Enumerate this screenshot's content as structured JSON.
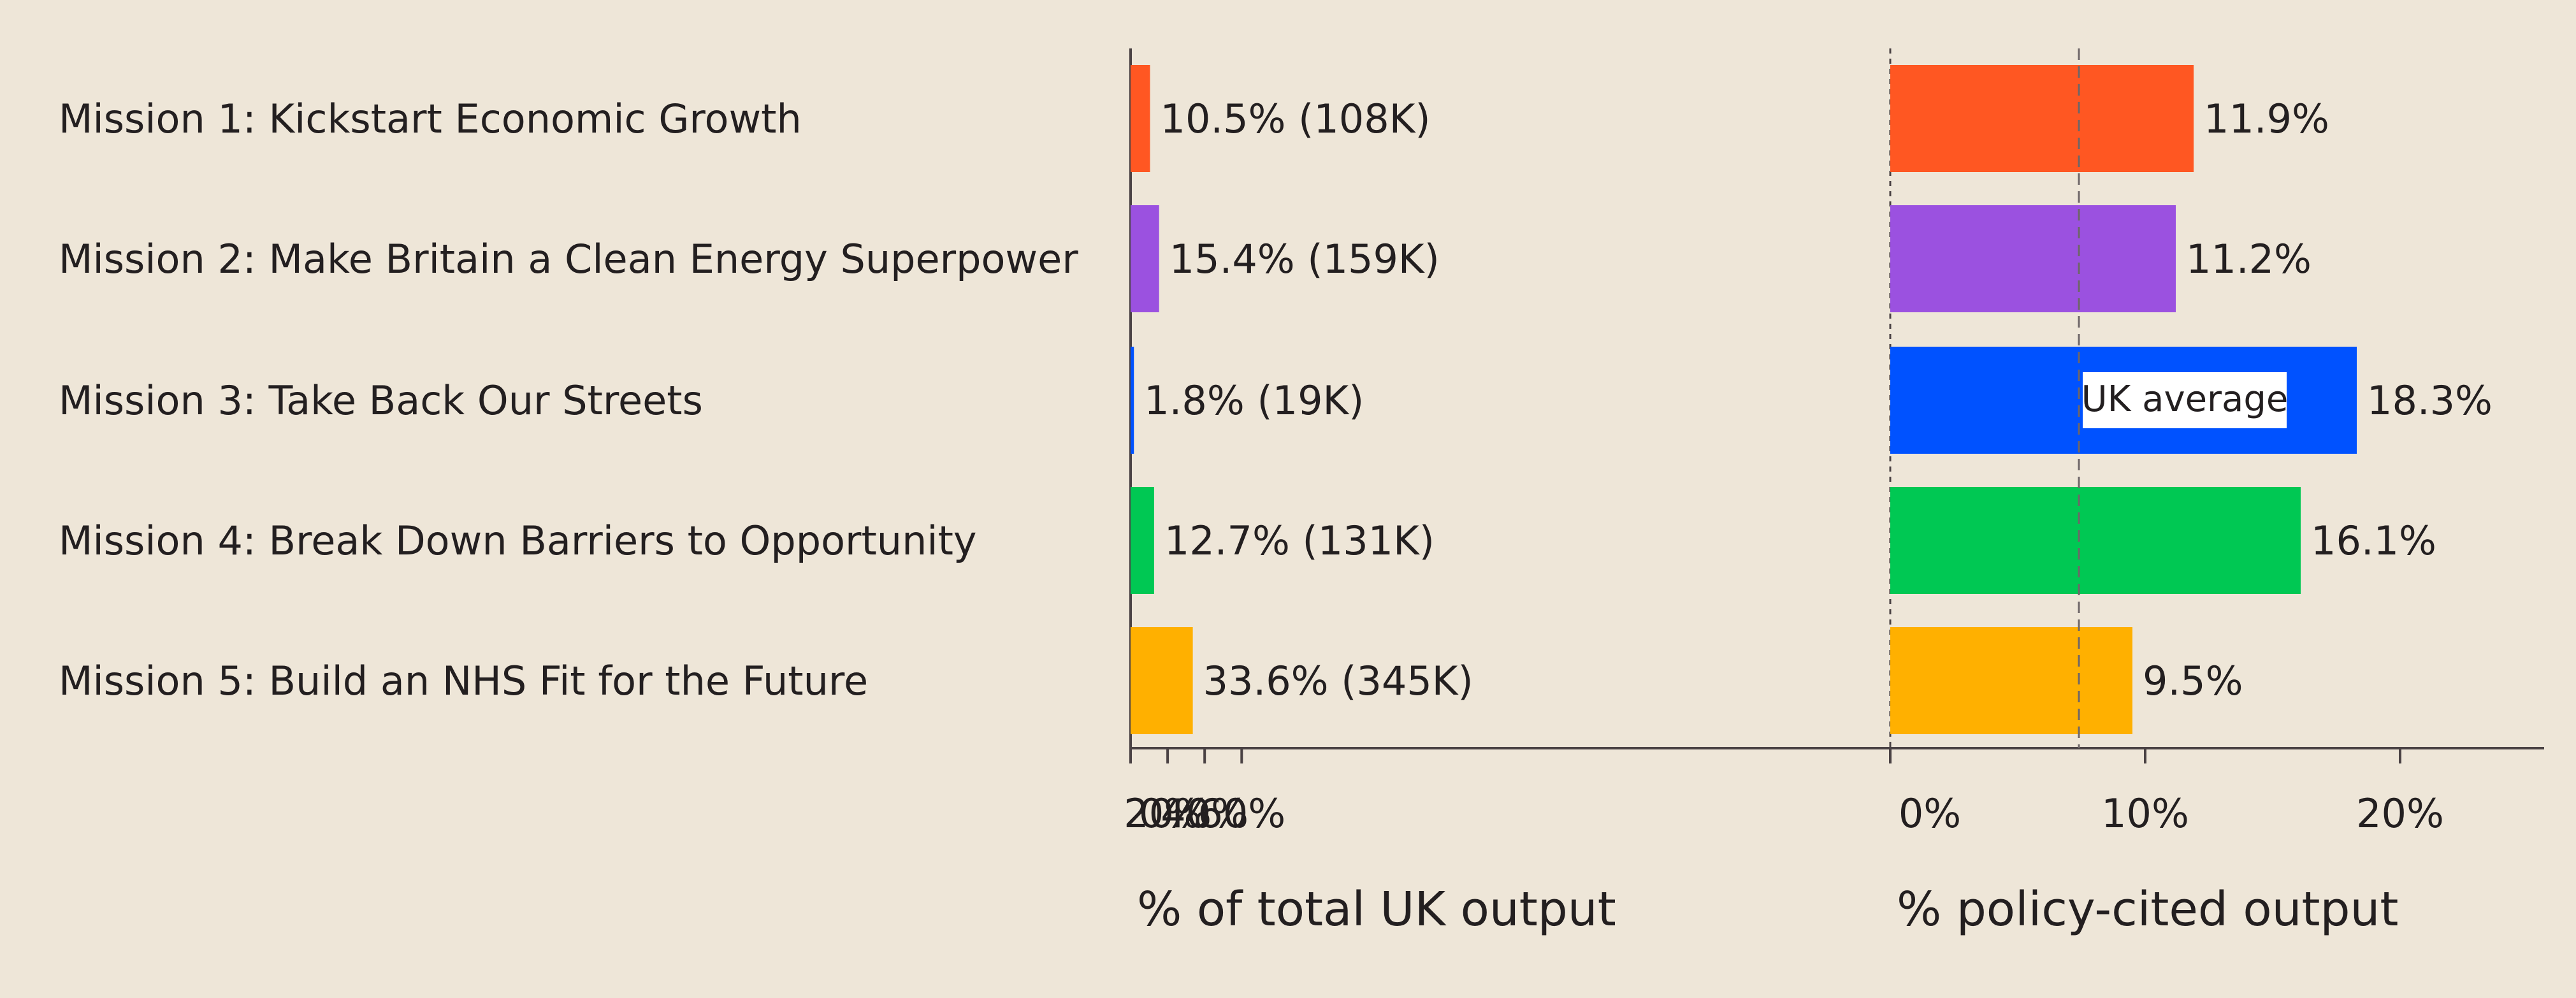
{
  "chart_data": [
    {
      "type": "bar",
      "orientation": "horizontal",
      "categories": [
        "Mission 1: Kickstart Economic Growth",
        "Mission 2: Make Britain a Clean Energy Superpower",
        "Mission 3: Take Back Our Streets",
        "Mission 4: Break Down Barriers to Opportunity",
        "Mission 5: Build an NHS Fit for the Future"
      ],
      "values": [
        10.5,
        15.4,
        1.8,
        12.7,
        33.6
      ],
      "data_labels": [
        "10.5% (108K)",
        "15.4% (159K)",
        "1.8% (19K)",
        "12.7% (131K)",
        "33.6% (345K)"
      ],
      "xlabel": "% of total UK output",
      "xlim": [
        0,
        75
      ],
      "xticks": [
        0,
        20,
        40,
        60
      ],
      "xtick_labels": [
        "0%",
        "20%",
        "40%",
        "60%"
      ],
      "colors": [
        "#FF5722",
        "#9B51E0",
        "#0052FF",
        "#00C853",
        "#FFB000"
      ],
      "grid": false
    },
    {
      "type": "bar",
      "orientation": "horizontal",
      "categories": [
        "Mission 1: Kickstart Economic Growth",
        "Mission 2: Make Britain a Clean Energy Superpower",
        "Mission 3: Take Back Our Streets",
        "Mission 4: Break Down Barriers to Opportunity",
        "Mission 5: Build an NHS Fit for the Future"
      ],
      "values": [
        11.9,
        11.2,
        18.3,
        16.1,
        9.5
      ],
      "data_labels": [
        "11.9%",
        "11.2%",
        "18.3%",
        "16.1%",
        "9.5%"
      ],
      "xlabel": "% policy-cited output",
      "xlim": [
        0,
        25
      ],
      "xticks": [
        0,
        10,
        20
      ],
      "xtick_labels": [
        "0%",
        "10%",
        "20%"
      ],
      "colors": [
        "#FF5722",
        "#9B51E0",
        "#0052FF",
        "#00C853",
        "#FFB000"
      ],
      "reference_line": {
        "value": 7.4,
        "label": "UK average"
      },
      "grid": false
    }
  ]
}
